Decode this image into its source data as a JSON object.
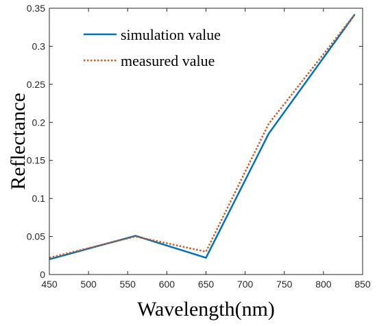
{
  "chart_data": {
    "type": "line",
    "xlabel": "Wavelength(nm)",
    "ylabel": "Reflectance",
    "xlim": [
      450,
      850
    ],
    "ylim": [
      0,
      0.35
    ],
    "xticks": [
      450,
      500,
      550,
      600,
      650,
      700,
      750,
      800,
      850
    ],
    "yticks": [
      0,
      0.05,
      0.1,
      0.15,
      0.2,
      0.25,
      0.3,
      0.35
    ],
    "xtick_labels": [
      "450",
      "500",
      "550",
      "600",
      "650",
      "700",
      "750",
      "800",
      "850"
    ],
    "ytick_labels": [
      "0",
      "0.05",
      "0.1",
      "0.15",
      "0.2",
      "0.25",
      "0.3",
      "0.35"
    ],
    "grid": false,
    "legend_position": "top-left",
    "series": [
      {
        "name": "simulation value",
        "style": "solid",
        "color": "#0072BD",
        "x": [
          450,
          560,
          650,
          730,
          840
        ],
        "y": [
          0.02,
          0.051,
          0.022,
          0.185,
          0.342
        ]
      },
      {
        "name": "measured value",
        "style": "dotted",
        "color": "#D95319",
        "x": [
          450,
          560,
          650,
          730,
          840
        ],
        "y": [
          0.022,
          0.05,
          0.03,
          0.198,
          0.342
        ]
      }
    ]
  }
}
